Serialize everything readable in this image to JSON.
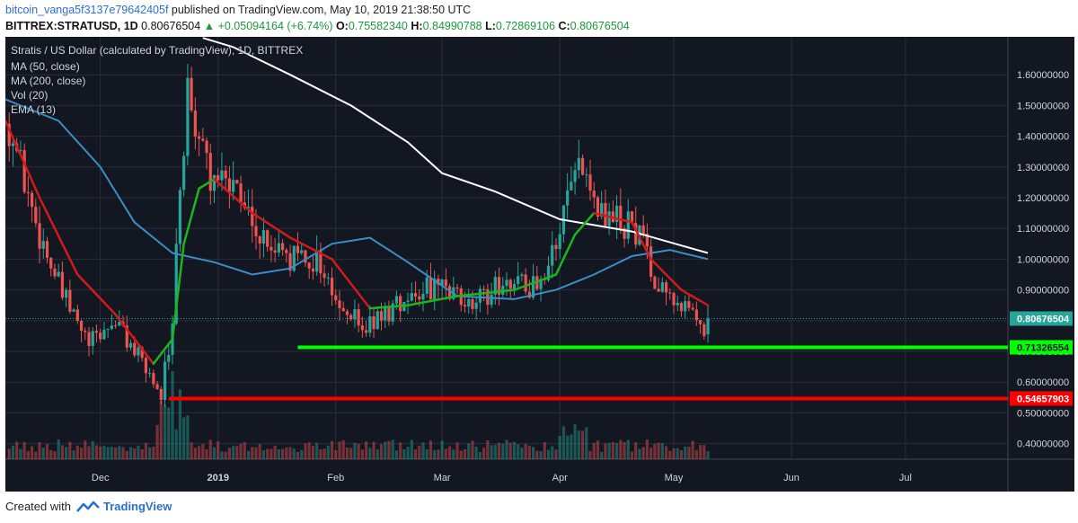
{
  "header": {
    "author": "bitcoin_vanga5f3137e79642405f",
    "published": "published on TradingView.com, May 10, 2019 21:38:50 UTC",
    "symbol": "BITTREX:STRATUSD, 1D",
    "last": "0.80676504",
    "change": "+0.05094164 (+6.74%)",
    "o_label": "O:",
    "o": "0.75582340",
    "h_label": "H:",
    "h": "0.84990788",
    "l_label": "L:",
    "l": "0.72869106",
    "c_label": "C:",
    "c": "0.80676504"
  },
  "legend": {
    "title": "Stratis / US Dollar (calculated by TradingView), 1D, BITTREX",
    "ma50": "MA (50, close)",
    "ma200": "MA (200, close)",
    "vol": "Vol (20)",
    "ema": "EMA (13)"
  },
  "footer": {
    "created_with": "Created with",
    "brand": "TradingView"
  },
  "colors": {
    "bg": "#131722",
    "grid": "#2a2e39",
    "up": "#26a69a",
    "down": "#ef5350",
    "ma50": "#3b8ec7",
    "ma200": "#ffffff",
    "ema_up": "#1db51d",
    "ema_down": "#d11a1a",
    "support": "#00ff00",
    "resistance": "#ff0000"
  },
  "chart_data": {
    "type": "candlestick",
    "x_axis": {
      "range": [
        "2018-11-06",
        "2019-07-28"
      ],
      "ticks": [
        {
          "label": "Dec",
          "date": "2018-12-01"
        },
        {
          "label": "2019",
          "date": "2019-01-01"
        },
        {
          "label": "Feb",
          "date": "2019-02-01"
        },
        {
          "label": "Mar",
          "date": "2019-03-01"
        },
        {
          "label": "Apr",
          "date": "2019-04-01"
        },
        {
          "label": "May",
          "date": "2019-05-01"
        },
        {
          "label": "Jun",
          "date": "2019-06-01"
        },
        {
          "label": "Jul",
          "date": "2019-07-01"
        }
      ]
    },
    "y_axis": {
      "range": [
        0.32,
        1.7
      ],
      "ticks": [
        "0.40000000",
        "0.50000000",
        "0.60000000",
        "0.70000000",
        "0.80000000",
        "0.90000000",
        "1.00000000",
        "1.10000000",
        "1.20000000",
        "1.30000000",
        "1.40000000",
        "1.50000000",
        "1.60000000"
      ]
    },
    "price_labels": [
      {
        "value": 0.80676504,
        "text": "0.80676504",
        "type": "last"
      },
      {
        "value": 0.71326554,
        "text": "0.71326554",
        "type": "support"
      },
      {
        "value": 0.54657903,
        "text": "0.54657903",
        "type": "resistance"
      }
    ],
    "horizontal_lines": [
      {
        "name": "support",
        "value": 0.71326554,
        "from": "2019-01-22",
        "to": "2019-07-28"
      },
      {
        "name": "resistance",
        "value": 0.54657903,
        "from": "2018-12-19",
        "to": "2019-07-28"
      }
    ],
    "close_keypoints": [
      [
        "2018-11-07",
        1.44
      ],
      [
        "2018-11-14",
        1.12
      ],
      [
        "2018-11-21",
        0.88
      ],
      [
        "2018-11-28",
        0.72
      ],
      [
        "2018-12-05",
        0.8
      ],
      [
        "2018-12-12",
        0.66
      ],
      [
        "2018-12-17",
        0.57
      ],
      [
        "2018-12-20",
        0.78
      ],
      [
        "2018-12-22",
        1.22
      ],
      [
        "2018-12-24",
        1.52
      ],
      [
        "2018-12-26",
        1.45
      ],
      [
        "2018-12-30",
        1.28
      ],
      [
        "2019-01-06",
        1.2
      ],
      [
        "2019-01-13",
        1.05
      ],
      [
        "2019-01-20",
        1.0
      ],
      [
        "2019-01-27",
        1.0
      ],
      [
        "2019-02-03",
        0.82
      ],
      [
        "2019-02-10",
        0.78
      ],
      [
        "2019-02-17",
        0.86
      ],
      [
        "2019-02-24",
        0.92
      ],
      [
        "2019-03-03",
        0.88
      ],
      [
        "2019-03-10",
        0.85
      ],
      [
        "2019-03-17",
        0.94
      ],
      [
        "2019-03-24",
        0.91
      ],
      [
        "2019-03-31",
        1.02
      ],
      [
        "2019-04-03",
        1.22
      ],
      [
        "2019-04-06",
        1.28
      ],
      [
        "2019-04-10",
        1.15
      ],
      [
        "2019-04-17",
        1.12
      ],
      [
        "2019-04-21",
        1.1
      ],
      [
        "2019-04-26",
        0.95
      ],
      [
        "2019-05-03",
        0.85
      ],
      [
        "2019-05-09",
        0.76
      ],
      [
        "2019-05-10",
        0.80676504
      ]
    ],
    "series": [
      {
        "name": "MA (50, close)",
        "color": "#3b8ec7",
        "points": [
          [
            "2018-11-06",
            1.52
          ],
          [
            "2018-11-20",
            1.45
          ],
          [
            "2018-12-01",
            1.3
          ],
          [
            "2018-12-10",
            1.12
          ],
          [
            "2018-12-20",
            1.02
          ],
          [
            "2018-12-31",
            0.99
          ],
          [
            "2019-01-10",
            0.95
          ],
          [
            "2019-01-20",
            0.97
          ],
          [
            "2019-01-31",
            1.05
          ],
          [
            "2019-02-10",
            1.07
          ],
          [
            "2019-02-20",
            0.99
          ],
          [
            "2019-03-05",
            0.88
          ],
          [
            "2019-03-20",
            0.87
          ],
          [
            "2019-03-31",
            0.9
          ],
          [
            "2019-04-10",
            0.95
          ],
          [
            "2019-04-20",
            1.01
          ],
          [
            "2019-04-30",
            1.03
          ],
          [
            "2019-05-10",
            1.0
          ]
        ]
      },
      {
        "name": "MA (200, close)",
        "color": "#ffffff",
        "points": [
          [
            "2018-12-28",
            1.72
          ],
          [
            "2019-01-05",
            1.69
          ],
          [
            "2019-01-20",
            1.6
          ],
          [
            "2019-02-05",
            1.5
          ],
          [
            "2019-02-20",
            1.38
          ],
          [
            "2019-03-01",
            1.28
          ],
          [
            "2019-03-15",
            1.22
          ],
          [
            "2019-04-01",
            1.13
          ],
          [
            "2019-04-20",
            1.09
          ],
          [
            "2019-05-10",
            1.02
          ]
        ]
      },
      {
        "name": "EMA (13)",
        "color": "#1db51d",
        "points": [
          [
            "2018-11-06",
            1.45
          ],
          [
            "2018-11-15",
            1.2
          ],
          [
            "2018-11-25",
            0.95
          ],
          [
            "2018-12-05",
            0.82
          ],
          [
            "2018-12-15",
            0.66
          ],
          [
            "2018-12-20",
            0.74
          ],
          [
            "2018-12-23",
            1.05
          ],
          [
            "2018-12-27",
            1.23
          ],
          [
            "2018-12-31",
            1.26
          ],
          [
            "2019-01-10",
            1.15
          ],
          [
            "2019-01-20",
            1.07
          ],
          [
            "2019-01-31",
            1.0
          ],
          [
            "2019-02-10",
            0.84
          ],
          [
            "2019-02-20",
            0.85
          ],
          [
            "2019-03-05",
            0.88
          ],
          [
            "2019-03-20",
            0.9
          ],
          [
            "2019-03-31",
            0.95
          ],
          [
            "2019-04-05",
            1.08
          ],
          [
            "2019-04-10",
            1.15
          ],
          [
            "2019-04-20",
            1.12
          ],
          [
            "2019-04-25",
            1.0
          ],
          [
            "2019-05-03",
            0.9
          ],
          [
            "2019-05-10",
            0.85
          ]
        ]
      }
    ]
  }
}
